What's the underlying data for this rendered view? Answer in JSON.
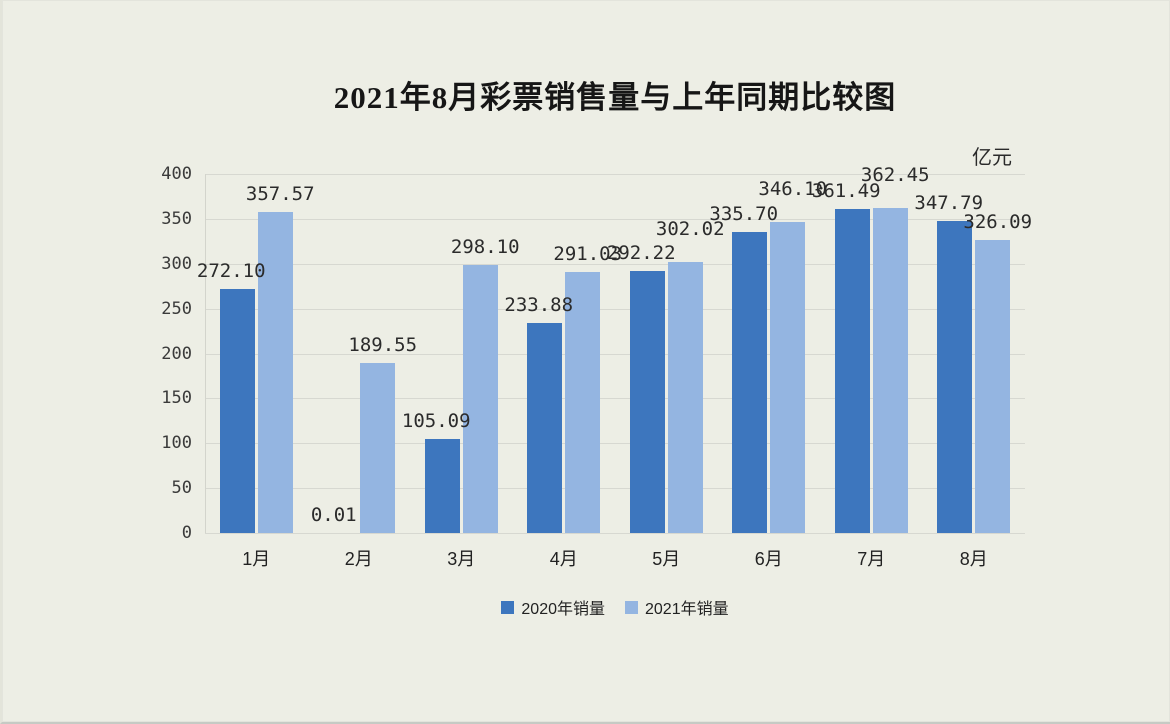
{
  "chart_data": {
    "type": "bar",
    "title": "2021年8月彩票销售量与上年同期比较图",
    "unit_label": "亿元",
    "categories": [
      "1月",
      "2月",
      "3月",
      "4月",
      "5月",
      "6月",
      "7月",
      "8月"
    ],
    "series": [
      {
        "name": "2020年销量",
        "color": "#3d76be",
        "values": [
          272.1,
          0.01,
          105.09,
          233.88,
          292.22,
          335.7,
          361.49,
          347.79
        ],
        "labels": [
          "272.10",
          "0.01",
          "105.09",
          "233.88",
          "292.22",
          "335.70",
          "361.49",
          "347.79"
        ]
      },
      {
        "name": "2021年销量",
        "color": "#94b5e1",
        "values": [
          357.57,
          189.55,
          298.1,
          291.03,
          302.02,
          346.1,
          362.45,
          326.09
        ],
        "labels": [
          "357.57",
          "189.55",
          "298.10",
          "291.03",
          "302.02",
          "346.10",
          "362.45",
          "326.09"
        ]
      }
    ],
    "ylim": [
      0,
      400
    ],
    "ytick_step": 50,
    "yticks": [
      "0",
      "50",
      "100",
      "150",
      "200",
      "250",
      "300",
      "350",
      "400"
    ],
    "grid": "horizontal",
    "legend_position": "bottom",
    "value_labels_shown": true
  },
  "colors": {
    "background": "#edeee5",
    "gridline": "#d7d8d1",
    "text": "#222222",
    "series_2020": "#3d76be",
    "series_2021": "#94b5e1"
  }
}
